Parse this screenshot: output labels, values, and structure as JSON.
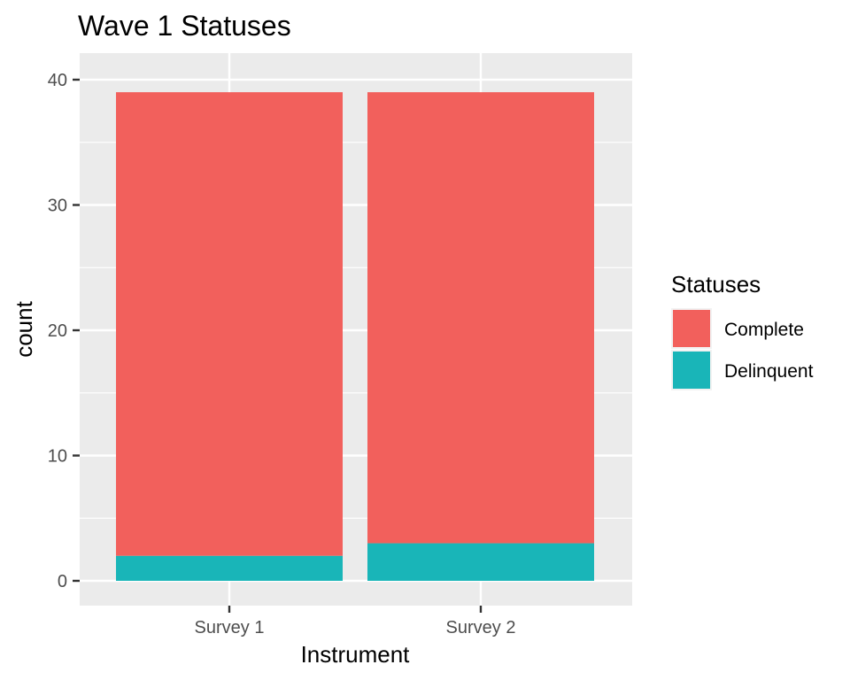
{
  "chart_data": {
    "type": "bar",
    "stacked": true,
    "title": "Wave 1 Statuses",
    "xlabel": "Instrument",
    "ylabel": "count",
    "categories": [
      "Survey 1",
      "Survey 2"
    ],
    "ylim": [
      0,
      40
    ],
    "y_ticks": [
      "0",
      "10",
      "20",
      "30",
      "40"
    ],
    "grid": true,
    "legend": {
      "title": "Statuses",
      "placement": "right"
    },
    "series": [
      {
        "name": "Complete",
        "color": "#F2605C",
        "values": [
          37,
          36
        ]
      },
      {
        "name": "Delinquent",
        "color": "#19B5B8",
        "values": [
          2,
          3
        ]
      }
    ]
  }
}
